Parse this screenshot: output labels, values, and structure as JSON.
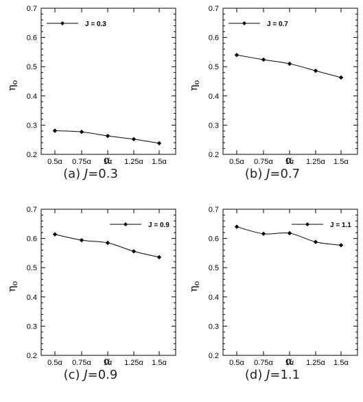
{
  "chart_data": [
    {
      "type": "line",
      "categories": [
        "0.5α",
        "0.75α",
        "1α",
        "1.25α",
        "1.5α"
      ],
      "series": [
        {
          "name": "J = 0.3",
          "values": [
            0.281,
            0.277,
            0.263,
            0.252,
            0.238
          ]
        }
      ],
      "xlabel": "α",
      "ylabel": "η_o",
      "ylim": [
        0.2,
        0.7
      ],
      "yticks": [
        "0.2",
        "0.3",
        "0.4",
        "0.5",
        "0.6",
        "0.7"
      ],
      "legend": "top-left",
      "grid": false,
      "caption": {
        "prefix": "(a) ",
        "var": "J",
        "value": "=0.3"
      }
    },
    {
      "type": "line",
      "categories": [
        "0.5α",
        "0.75α",
        "1α",
        "1.25α",
        "1.5α"
      ],
      "series": [
        {
          "name": "J = 0.7",
          "values": [
            0.54,
            0.524,
            0.51,
            0.486,
            0.463
          ]
        }
      ],
      "xlabel": "α",
      "ylabel": "η_o",
      "ylim": [
        0.2,
        0.7
      ],
      "yticks": [
        "0.2",
        "0.3",
        "0.4",
        "0.5",
        "0.6",
        "0.7"
      ],
      "legend": "top-left",
      "grid": false,
      "caption": {
        "prefix": "(b) ",
        "var": "J",
        "value": "=0.7"
      }
    },
    {
      "type": "line",
      "categories": [
        "0.5α",
        "0.75α",
        "1α",
        "1.25α",
        "1.5α"
      ],
      "series": [
        {
          "name": "J = 0.9",
          "values": [
            0.614,
            0.594,
            0.585,
            0.556,
            0.536
          ]
        }
      ],
      "xlabel": "α",
      "ylabel": "η_o",
      "ylim": [
        0.2,
        0.7
      ],
      "yticks": [
        "0.2",
        "0.3",
        "0.4",
        "0.5",
        "0.6",
        "0.7"
      ],
      "legend": "top-right",
      "grid": false,
      "caption": {
        "prefix": "(c) ",
        "var": "J",
        "value": "=0.9"
      }
    },
    {
      "type": "line",
      "categories": [
        "0.5α",
        "0.75α",
        "1α",
        "1.25α",
        "1.5α"
      ],
      "series": [
        {
          "name": "J = 1.1",
          "values": [
            0.64,
            0.616,
            0.618,
            0.588,
            0.577
          ]
        }
      ],
      "xlabel": "α",
      "ylabel": "η_o",
      "ylim": [
        0.2,
        0.7
      ],
      "yticks": [
        "0.2",
        "0.3",
        "0.4",
        "0.5",
        "0.6",
        "0.7"
      ],
      "legend": "top-right",
      "grid": false,
      "caption": {
        "prefix": "(d) ",
        "var": "J",
        "value": "=1.1"
      }
    }
  ]
}
